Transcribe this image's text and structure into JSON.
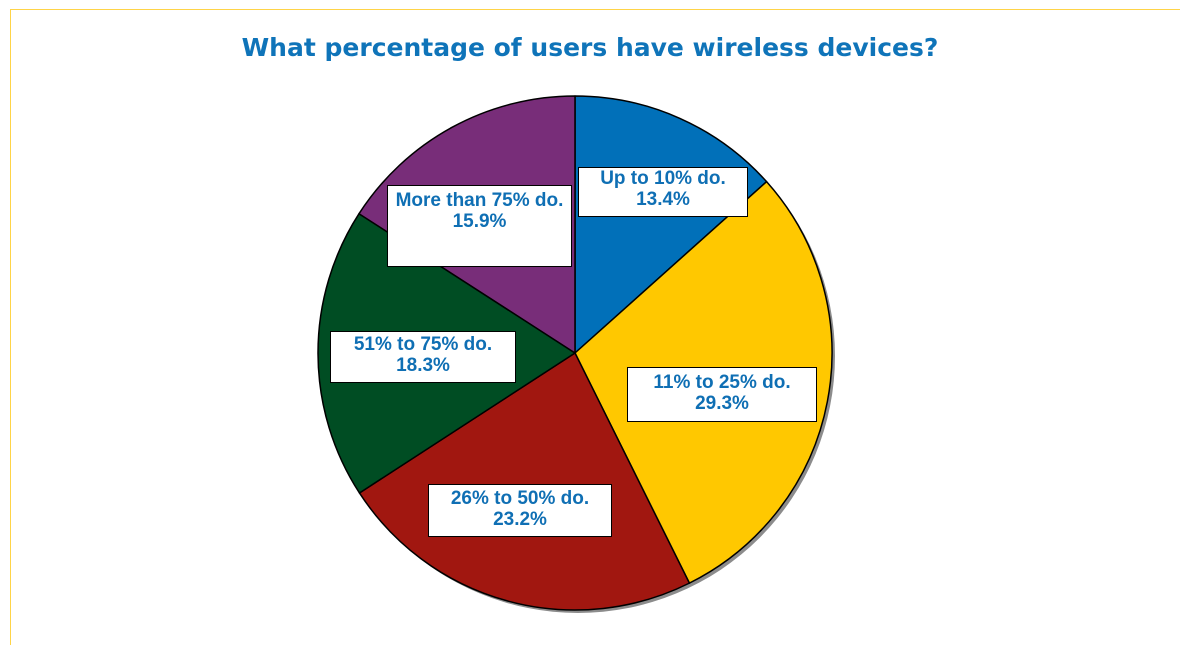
{
  "chart_data": {
    "type": "pie",
    "title": "What percentage of users have wireless devices?",
    "start_angle_deg": 0,
    "direction": "clockwise",
    "slices": [
      {
        "label": "Up to 10% do.",
        "pct_label": "13.4%",
        "value": 13.4,
        "color": "#0170b9"
      },
      {
        "label": "11% to 25% do.",
        "pct_label": "29.3%",
        "value": 29.3,
        "color": "#ffc800"
      },
      {
        "label": "26% to 50% do.",
        "pct_label": "23.2%",
        "value": 23.2,
        "color": "#a11710"
      },
      {
        "label": "51% to 75% do.",
        "pct_label": "18.3%",
        "value": 18.3,
        "color": "#004d23"
      },
      {
        "label": "More than 75% do.",
        "pct_label": "15.9%",
        "value": 15.9,
        "color": "#782d79"
      }
    ]
  },
  "colors": {
    "title": "#0f74b9",
    "label_text": "#0f6fb4",
    "frame": "#ffd447"
  }
}
